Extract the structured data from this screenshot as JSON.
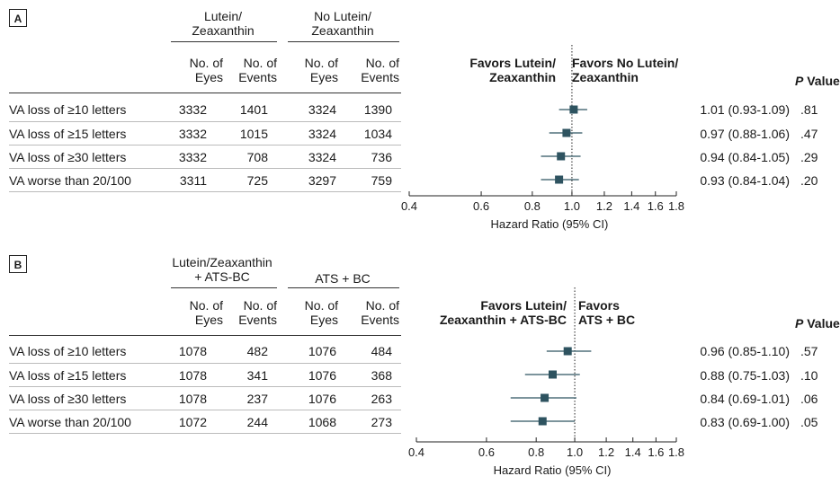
{
  "colors": {
    "marker": "#2e5360",
    "rule": "#333333",
    "light_rule": "#bbbbbb",
    "text": "#1a1a1a"
  },
  "chart_data": [
    {
      "type": "forest",
      "panel_label": "A",
      "group1_label": "Lutein/\nZeaxanthin",
      "group2_label": "No Lutein/\nZeaxanthin",
      "col_headers": [
        "No. of\nEyes",
        "No. of\nEvents",
        "No. of\nEyes",
        "No. of\nEvents"
      ],
      "favors_left": "Favors Lutein/\nZeaxanthin",
      "favors_right": "Favors No Lutein/\nZeaxanthin",
      "pvalue_header_p": "P",
      "pvalue_header_rest": "Value",
      "xlabel": "Hazard Ratio (95% CI)",
      "xticks": [
        "0.4",
        "0.6",
        "0.8",
        "1.0",
        "1.2",
        "1.4",
        "1.6",
        "1.8"
      ],
      "xtick_values": [
        0.4,
        0.6,
        0.8,
        1.0,
        1.2,
        1.4,
        1.6,
        1.8
      ],
      "xlim": [
        0.4,
        1.8
      ],
      "x_scale": "log",
      "reference_line": 1.0,
      "rows": [
        {
          "label": "VA loss of ≥10 letters",
          "eyes1": "3332",
          "events1": "1401",
          "eyes2": "3324",
          "events2": "1390",
          "hr": 1.01,
          "lo": 0.93,
          "hi": 1.09,
          "ci_text": "1.01 (0.93-1.09)",
          "p": ".81"
        },
        {
          "label": "VA loss of ≥15 letters",
          "eyes1": "3332",
          "events1": "1015",
          "eyes2": "3324",
          "events2": "1034",
          "hr": 0.97,
          "lo": 0.88,
          "hi": 1.06,
          "ci_text": "0.97 (0.88-1.06)",
          "p": ".47"
        },
        {
          "label": "VA loss of ≥30 letters",
          "eyes1": "3332",
          "events1": "708",
          "eyes2": "3324",
          "events2": "736",
          "hr": 0.94,
          "lo": 0.84,
          "hi": 1.05,
          "ci_text": "0.94 (0.84-1.05)",
          "p": ".29"
        },
        {
          "label": "VA worse than 20/100",
          "eyes1": "3311",
          "events1": "725",
          "eyes2": "3297",
          "events2": "759",
          "hr": 0.93,
          "lo": 0.84,
          "hi": 1.04,
          "ci_text": "0.93 (0.84-1.04)",
          "p": ".20"
        }
      ]
    },
    {
      "type": "forest",
      "panel_label": "B",
      "group1_label": "Lutein/Zeaxanthin\n+ ATS-BC",
      "group2_label": "ATS + BC",
      "col_headers": [
        "No. of\nEyes",
        "No. of\nEvents",
        "No. of\nEyes",
        "No. of\nEvents"
      ],
      "favors_left": "Favors Lutein/\nZeaxanthin + ATS-BC",
      "favors_right": "Favors\nATS + BC",
      "pvalue_header_p": "P",
      "pvalue_header_rest": "Value",
      "xlabel": "Hazard Ratio (95% CI)",
      "xticks": [
        "0.4",
        "0.6",
        "0.8",
        "1.0",
        "1.2",
        "1.4",
        "1.6",
        "1.8"
      ],
      "xtick_values": [
        0.4,
        0.6,
        0.8,
        1.0,
        1.2,
        1.4,
        1.6,
        1.8
      ],
      "xlim": [
        0.4,
        1.8
      ],
      "x_scale": "log",
      "reference_line": 1.0,
      "rows": [
        {
          "label": "VA loss of ≥10 letters",
          "eyes1": "1078",
          "events1": "482",
          "eyes2": "1076",
          "events2": "484",
          "hr": 0.96,
          "lo": 0.85,
          "hi": 1.1,
          "ci_text": "0.96 (0.85-1.10)",
          "p": ".57"
        },
        {
          "label": "VA loss of ≥15 letters",
          "eyes1": "1078",
          "events1": "341",
          "eyes2": "1076",
          "events2": "368",
          "hr": 0.88,
          "lo": 0.75,
          "hi": 1.03,
          "ci_text": "0.88 (0.75-1.03)",
          "p": ".10"
        },
        {
          "label": "VA loss of ≥30 letters",
          "eyes1": "1078",
          "events1": "237",
          "eyes2": "1076",
          "events2": "263",
          "hr": 0.84,
          "lo": 0.69,
          "hi": 1.01,
          "ci_text": "0.84 (0.69-1.01)",
          "p": ".06"
        },
        {
          "label": "VA worse than 20/100",
          "eyes1": "1072",
          "events1": "244",
          "eyes2": "1068",
          "events2": "273",
          "hr": 0.83,
          "lo": 0.69,
          "hi": 1.0,
          "ci_text": "0.83 (0.69-1.00)",
          "p": ".05"
        }
      ]
    }
  ]
}
